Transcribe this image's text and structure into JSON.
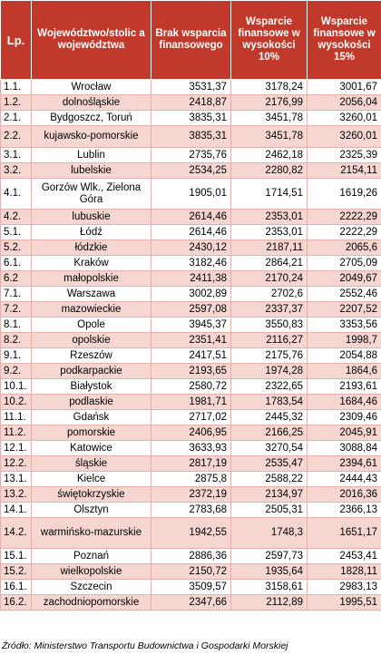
{
  "headers": {
    "lp": "Lp.",
    "region": "Województwo/stolic a województwa",
    "no_support": "Brak wsparcia finansowego",
    "support10": "Wsparcie finansowe w wysokości 10%",
    "support15": "Wsparcie finansowe w wysokości 15%"
  },
  "rows": [
    {
      "lp": "1.1.",
      "name": "Wrocław",
      "v0": "3531,37",
      "v10": "3178,24",
      "v15": "3001,67"
    },
    {
      "lp": "1.2.",
      "name": "dolnośląskie",
      "v0": "2418,87",
      "v10": "2176,99",
      "v15": "2056,04"
    },
    {
      "lp": "2.1.",
      "name": "Bydgoszcz, Toruń",
      "v0": "3835,31",
      "v10": "3451,78",
      "v15": "3260,01"
    },
    {
      "lp": "2.2.",
      "name": "kujawsko-pomorskie",
      "v0": "3835,31",
      "v10": "3451,78",
      "v15": "3260,01"
    },
    {
      "lp": "3.1.",
      "name": "Lublin",
      "v0": "2735,76",
      "v10": "2462,18",
      "v15": "2325,39"
    },
    {
      "lp": "3.2.",
      "name": "lubelskie",
      "v0": "2534,25",
      "v10": "2280,82",
      "v15": "2154,11"
    },
    {
      "lp": "4.1.",
      "name": "Gorzów Wlk., Zielona Góra",
      "v0": "1905,01",
      "v10": "1714,51",
      "v15": "1619,26"
    },
    {
      "lp": "4.2.",
      "name": "lubuskie",
      "v0": "2614,46",
      "v10": "2353,01",
      "v15": "2222,29"
    },
    {
      "lp": "5.1.",
      "name": "Łódź",
      "v0": "2614,46",
      "v10": "2353,01",
      "v15": "2222,29"
    },
    {
      "lp": "5.2.",
      "name": "łódzkie",
      "v0": "2430,12",
      "v10": "2187,11",
      "v15": "2065,6"
    },
    {
      "lp": "6.1.",
      "name": "Kraków",
      "v0": "3182,46",
      "v10": "2864,21",
      "v15": "2705,09"
    },
    {
      "lp": "6.2",
      "name": "małopolskie",
      "v0": "2411,38",
      "v10": "2170,24",
      "v15": "2049,67"
    },
    {
      "lp": "7.1.",
      "name": "Warszawa",
      "v0": "3002,89",
      "v10": "2702,6",
      "v15": "2552,46"
    },
    {
      "lp": "7.2.",
      "name": "mazowieckie",
      "v0": "2597,08",
      "v10": "2337,37",
      "v15": "2207,52"
    },
    {
      "lp": "8.1.",
      "name": "Opole",
      "v0": "3945,37",
      "v10": "3550,83",
      "v15": "3353,56"
    },
    {
      "lp": "8.2.",
      "name": "opolskie",
      "v0": "2351,41",
      "v10": "2116,27",
      "v15": "1998,7"
    },
    {
      "lp": "9.1.",
      "name": "Rzeszów",
      "v0": "2417,51",
      "v10": "2175,76",
      "v15": "2054,88"
    },
    {
      "lp": "9.2.",
      "name": "podkarpackie",
      "v0": "2193,65",
      "v10": "1974,28",
      "v15": "1864,6"
    },
    {
      "lp": "10.1.",
      "name": "Białystok",
      "v0": "2580,72",
      "v10": "2322,65",
      "v15": "2193,61"
    },
    {
      "lp": "10.2.",
      "name": "podlaskie",
      "v0": "1981,71",
      "v10": "1783,54",
      "v15": "1684,46"
    },
    {
      "lp": "11.1.",
      "name": "Gdańsk",
      "v0": "2717,02",
      "v10": "2445,32",
      "v15": "2309,46"
    },
    {
      "lp": "11.2.",
      "name": "pomorskie",
      "v0": "2406,95",
      "v10": "2166,25",
      "v15": "2045,91"
    },
    {
      "lp": "12.1.",
      "name": "Katowice",
      "v0": "3633,93",
      "v10": "3270,54",
      "v15": "3088,84"
    },
    {
      "lp": "12.2.",
      "name": "śląskie",
      "v0": "2817,19",
      "v10": "2535,47",
      "v15": "2394,61"
    },
    {
      "lp": "13.1.",
      "name": "Kielce",
      "v0": "2875,8",
      "v10": "2588,22",
      "v15": "2444,43"
    },
    {
      "lp": "13.2.",
      "name": "świętokrzyskie",
      "v0": "2372,19",
      "v10": "2134,97",
      "v15": "2016,36"
    },
    {
      "lp": "14.1.",
      "name": "Olsztyn",
      "v0": "2783,68",
      "v10": "2505,31",
      "v15": "2366,13"
    },
    {
      "lp": "14.2.",
      "name": "warmińsko-mazurskie",
      "v0": "1942,55",
      "v10": "1748,3",
      "v15": "1651,17"
    },
    {
      "lp": "15.1.",
      "name": "Poznań",
      "v0": "2886,36",
      "v10": "2597,73",
      "v15": "2453,41"
    },
    {
      "lp": "15.2.",
      "name": "wielkopolskie",
      "v0": "2150,72",
      "v10": "1935,64",
      "v15": "1828,11"
    },
    {
      "lp": "16.1.",
      "name": "Szczecin",
      "v0": "3509,57",
      "v10": "3158,61",
      "v15": "2983,13"
    },
    {
      "lp": "16.2.",
      "name": "zachodniopomorskie",
      "v0": "2347,66",
      "v10": "2112,89",
      "v15": "1995,51"
    }
  ],
  "source": "Źródło: Ministerstwo Transportu Budownictwa i Gospodarki Morskiej",
  "colors": {
    "header_bg": "#c0392b",
    "row_alt_bg": "#f6d6d1",
    "border": "#e6b0aa"
  }
}
